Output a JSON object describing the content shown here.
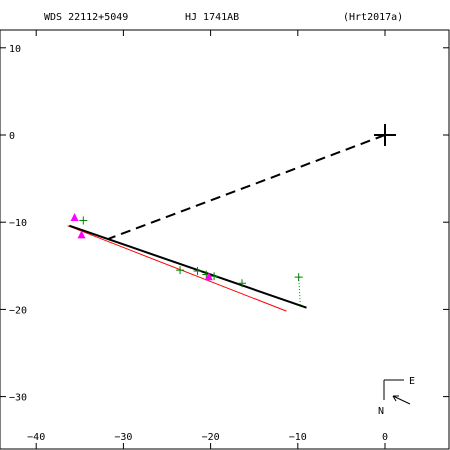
{
  "header": {
    "wds": "WDS 22112+5049",
    "name": "HJ 1741AB",
    "reference": "(Hrt2017a)"
  },
  "compass": {
    "east": "E",
    "north": "N"
  },
  "chart_data": {
    "type": "scatter",
    "title": "",
    "xlabel": "",
    "ylabel": "",
    "xlim": [
      -44,
      7
    ],
    "ylim": [
      -36,
      14
    ],
    "x_ticks": [
      -40,
      -30,
      -20,
      -10,
      0
    ],
    "y_ticks": [
      10,
      0,
      -10,
      -20,
      -30
    ],
    "x_tick_labels": [
      "−40",
      "−30",
      "−20",
      "−10",
      "0"
    ],
    "y_tick_labels": [
      "10",
      "0",
      "−10",
      "−20",
      "−30"
    ],
    "grid": false,
    "colors": {
      "orbit_fit": "#000000",
      "alternate_fit": "#ff0000",
      "observations": "#008000",
      "highlighted": "#ff00ff",
      "connector": "#000000"
    },
    "primary_star": {
      "x": 0,
      "y": 0
    },
    "orbit_fit_line": [
      [
        -36.2,
        -10.4
      ],
      [
        -9.0,
        -19.8
      ]
    ],
    "alternate_fit_line": [
      [
        -36.4,
        -10.4
      ],
      [
        -11.3,
        -20.2
      ]
    ],
    "connector_line": [
      [
        0,
        0
      ],
      [
        -31.7,
        -11.9
      ]
    ],
    "observations": [
      {
        "x": -34.6,
        "y": -9.8
      },
      {
        "x": -23.5,
        "y": -15.5
      },
      {
        "x": -21.5,
        "y": -15.6
      },
      {
        "x": -20.5,
        "y": -16.0
      },
      {
        "x": -19.6,
        "y": -16.2
      },
      {
        "x": -16.4,
        "y": -17.0
      },
      {
        "x": -9.9,
        "y": -16.3
      }
    ],
    "residual_links": [
      {
        "from": [
          -9.9,
          -16.3
        ],
        "to": [
          -9.7,
          -19.6
        ]
      }
    ],
    "highlighted_points": [
      {
        "x": -35.6,
        "y": -9.4
      },
      {
        "x": -34.8,
        "y": -11.4
      },
      {
        "x": -20.2,
        "y": -16.2
      }
    ]
  }
}
